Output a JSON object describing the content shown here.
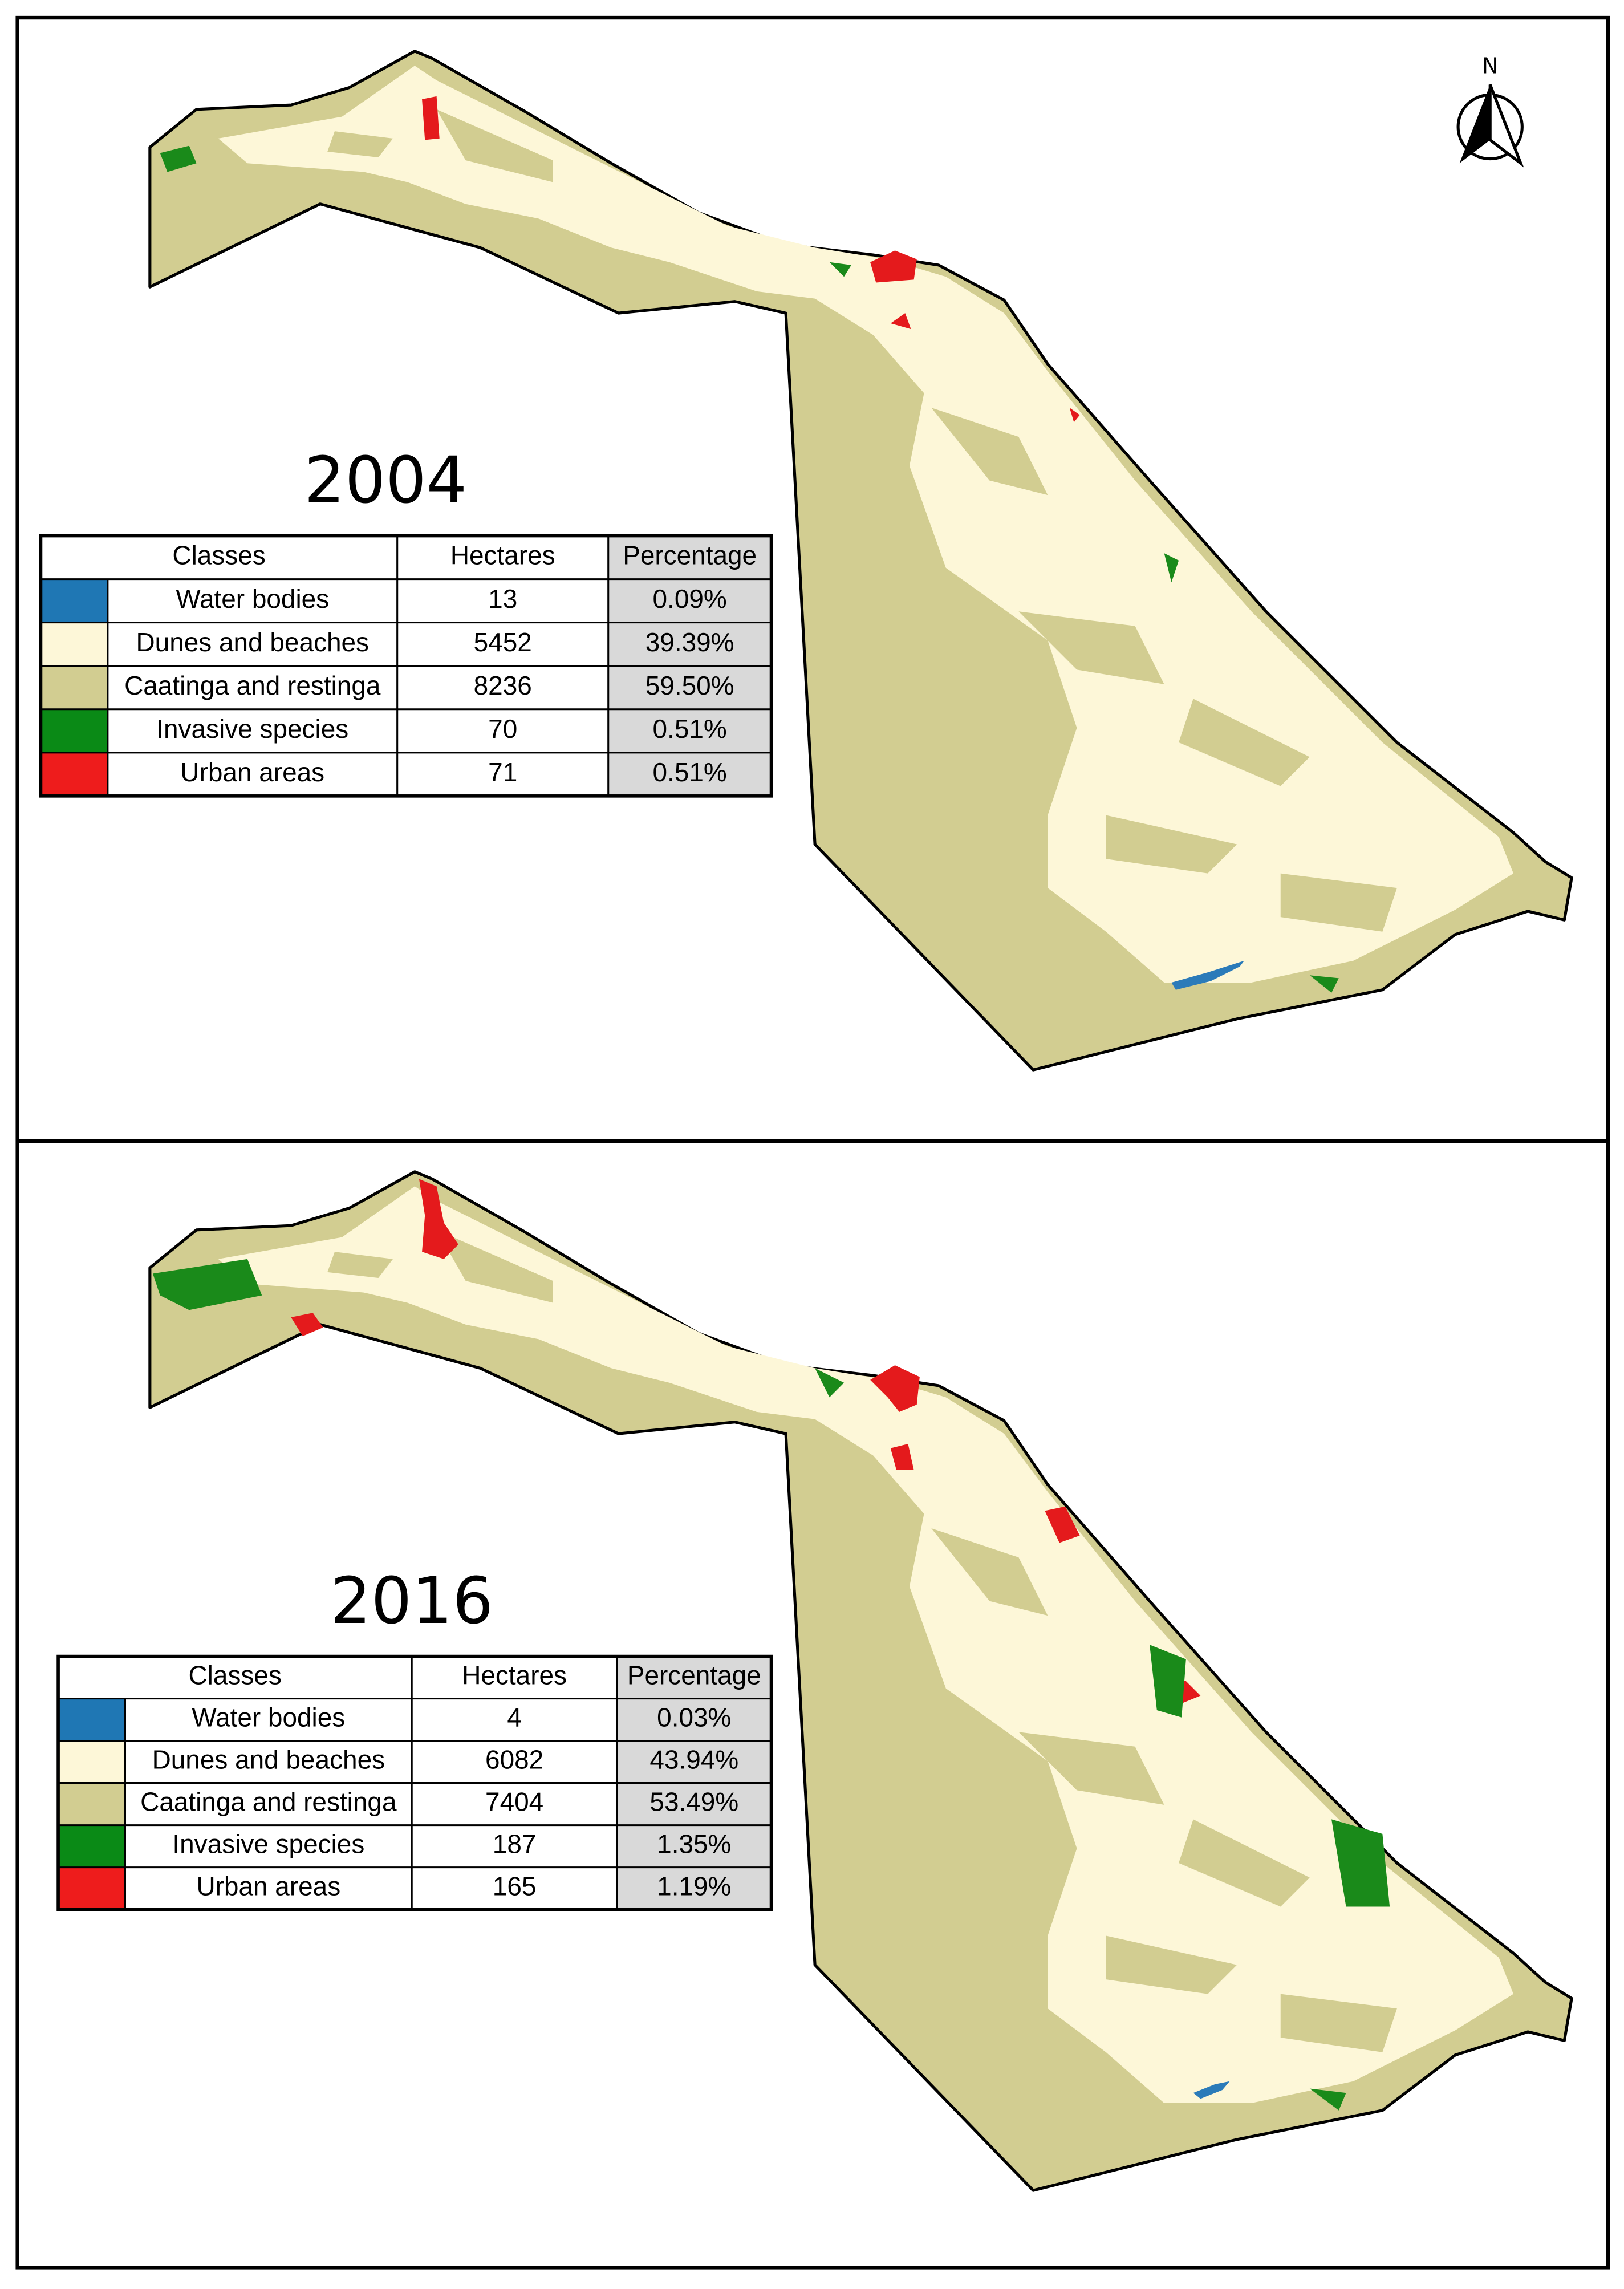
{
  "north_label": "N",
  "panels": [
    {
      "year": "2004",
      "table": {
        "header": [
          "Classes",
          "Hectares",
          "Percentage"
        ],
        "rows": [
          [
            "Water bodies",
            13,
            "0.09%"
          ],
          [
            "Dunes and beaches",
            5452,
            "39.39%"
          ],
          [
            "Caatinga and restinga",
            8236,
            "59.50%"
          ],
          [
            "Invasive species",
            70,
            "0.51%"
          ],
          [
            "Urban areas",
            71,
            "0.51%"
          ]
        ]
      }
    },
    {
      "year": "2016",
      "table": {
        "header": [
          "Classes",
          "Hectares",
          "Percentage"
        ],
        "rows": [
          [
            "Water bodies",
            4,
            "0.03%"
          ],
          [
            "Dunes and beaches",
            6082,
            "43.94%"
          ],
          [
            "Caatinga and restinga",
            7404,
            "53.49%"
          ],
          [
            "Invasive species",
            187,
            "1.35%"
          ],
          [
            "Urban areas",
            165,
            "1.19%"
          ]
        ]
      }
    }
  ]
}
